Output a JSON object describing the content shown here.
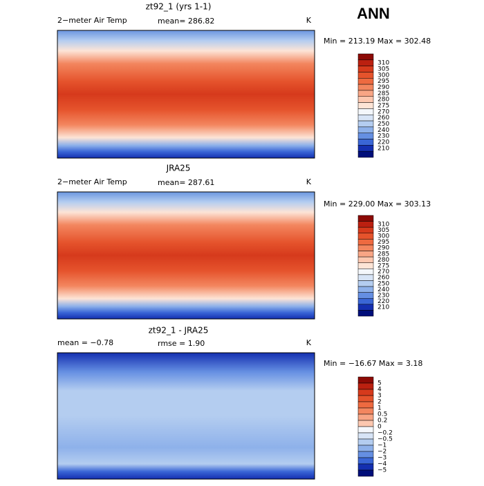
{
  "title": "ANN",
  "panels": [
    {
      "title": "zt92_1 (yrs 1-1)",
      "left_label": "2−meter Air Temp",
      "center_label": "mean= 286.82",
      "right_label": "K",
      "stats": "Min = 213.19 Max = 302.48",
      "colorbar": {
        "labels": [
          "310",
          "305",
          "300",
          "295",
          "290",
          "285",
          "280",
          "275",
          "270",
          "260",
          "250",
          "240",
          "230",
          "220",
          "210"
        ],
        "colors": [
          "#8c0a05",
          "#bb2010",
          "#d63a1c",
          "#e5532c",
          "#ee6a40",
          "#f3865f",
          "#f8a585",
          "#fcc7af",
          "#fde4d6",
          "#f4f7fb",
          "#d7e4f6",
          "#b4cdf0",
          "#8eb1ea",
          "#658fe2",
          "#3a66d6",
          "#142fb0",
          "#000e7a"
        ]
      }
    },
    {
      "title": "JRA25",
      "left_label": "2−meter Air Temp",
      "center_label": "mean= 287.61",
      "right_label": "K",
      "stats": "Min = 229.00 Max = 303.13",
      "colorbar": {
        "labels": [
          "310",
          "305",
          "300",
          "295",
          "290",
          "285",
          "280",
          "275",
          "270",
          "260",
          "250",
          "240",
          "230",
          "220",
          "210"
        ],
        "colors": [
          "#8c0a05",
          "#bb2010",
          "#d63a1c",
          "#e5532c",
          "#ee6a40",
          "#f3865f",
          "#f8a585",
          "#fcc7af",
          "#fde4d6",
          "#f4f7fb",
          "#d7e4f6",
          "#b4cdf0",
          "#8eb1ea",
          "#658fe2",
          "#3a66d6",
          "#142fb0",
          "#000e7a"
        ]
      }
    },
    {
      "title": "zt92_1 - JRA25",
      "left_label": "mean =   −0.78",
      "center_label": "rmse =    1.90",
      "right_label": "K",
      "stats": "Min = −16.67 Max =    3.18",
      "colorbar": {
        "labels": [
          "5",
          "4",
          "3",
          "2",
          "1",
          "0.5",
          "0.2",
          "0",
          "−0.2",
          "−0.5",
          "−1",
          "−2",
          "−3",
          "−4",
          "−5"
        ],
        "colors": [
          "#8c0a05",
          "#bb2010",
          "#d63a1c",
          "#e5532c",
          "#ee6a40",
          "#f3865f",
          "#f8a585",
          "#fcc7af",
          "#f4f7fb",
          "#d7e4f6",
          "#b4cdf0",
          "#8eb1ea",
          "#658fe2",
          "#3a66d6",
          "#142fb0",
          "#000e7a"
        ]
      }
    }
  ]
}
